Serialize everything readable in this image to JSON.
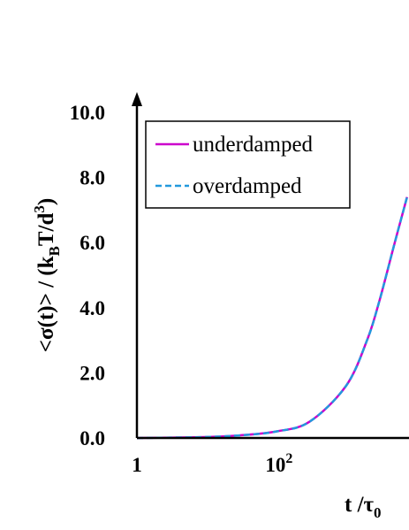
{
  "chart_data": {
    "type": "line",
    "title": "",
    "xlabel": {
      "main": "t /τ",
      "sub": "0"
    },
    "ylabel": {
      "prefix": "<σ(t)> / (k",
      "sub": "B",
      "mid": "T/d",
      "sup": "3",
      "suffix": ")"
    },
    "x_scale": "log",
    "xlim": [
      1,
      8000
    ],
    "ylim": [
      0,
      10
    ],
    "x_ticks": [
      {
        "value": 1,
        "base": "1",
        "exp": ""
      },
      {
        "value": 100,
        "base": "10",
        "exp": "2"
      }
    ],
    "y_ticks": [
      {
        "value": 0,
        "label": "0.0"
      },
      {
        "value": 2,
        "label": "2.0"
      },
      {
        "value": 4,
        "label": "4.0"
      },
      {
        "value": 6,
        "label": "6.0"
      },
      {
        "value": 8,
        "label": "8.0"
      },
      {
        "value": 10,
        "label": "10.0"
      }
    ],
    "legend_position": "top-left",
    "series": [
      {
        "name": "underdamped",
        "color": "#cc00cc",
        "dash": "solid",
        "x": [
          1,
          3,
          10,
          30,
          100,
          300,
          1000,
          2000,
          3000,
          5000,
          7500
        ],
        "y": [
          0.0,
          0.01,
          0.03,
          0.08,
          0.2,
          0.5,
          1.6,
          3.0,
          4.2,
          6.0,
          7.4
        ]
      },
      {
        "name": "overdamped",
        "color": "#2299dd",
        "dash": "dashed",
        "x": [
          1,
          3,
          10,
          30,
          100,
          300,
          1000,
          2000,
          3000,
          5000,
          7500
        ],
        "y": [
          0.0,
          0.01,
          0.03,
          0.08,
          0.2,
          0.5,
          1.6,
          3.0,
          4.2,
          6.0,
          7.4
        ]
      }
    ]
  }
}
